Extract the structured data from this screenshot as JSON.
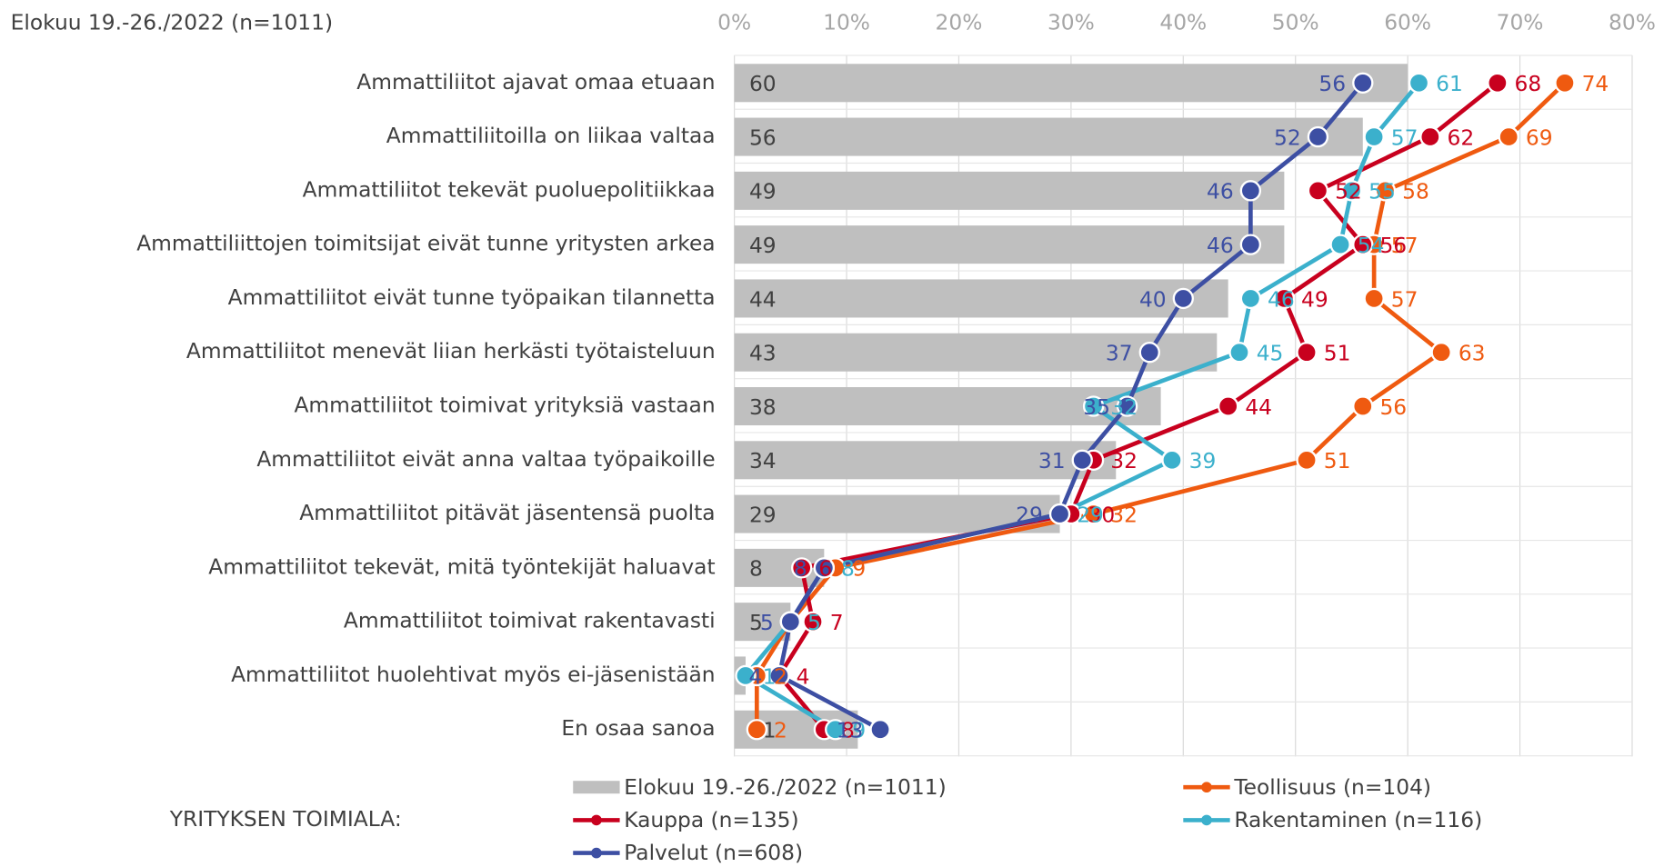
{
  "chart_data": {
    "type": "bar",
    "orientation": "horizontal",
    "title": "Elokuu 19.-26./2022 (n=1011)",
    "legend_title": "YRITYKSEN TOIMIALA:",
    "categories": [
      "Ammattiliitot ajavat omaa etuaan",
      "Ammattiliitoilla on liikaa valtaa",
      "Ammattiliitot tekevät puoluepolitiikkaa",
      "Ammattiliittojen toimitsijat eivät tunne yritysten arkea",
      "Ammattiliitot eivät tunne työpaikan tilannetta",
      "Ammattiliitot menevät liian herkästi työtaisteluun",
      "Ammattiliitot toimivat yrityksiä vastaan",
      "Ammattiliitot eivät anna valtaa työpaikoille",
      "Ammattiliitot pitävät jäsentensä puolta",
      "Ammattiliitot tekevät, mitä työntekijät haluavat",
      "Ammattiliitot toimivat rakentavasti",
      "Ammattiliitot huolehtivat myös ei-jäsenistään",
      "En osaa sanoa"
    ],
    "series": [
      {
        "name": "Elokuu 19.-26./2022 (n=1011)",
        "type": "bar",
        "color": "#bfbfbf",
        "values": [
          60,
          56,
          49,
          49,
          44,
          43,
          38,
          34,
          29,
          8,
          5,
          1,
          11
        ]
      },
      {
        "name": "Teollisuus (n=104)",
        "type": "line",
        "color": "#ef5a10",
        "values": [
          74,
          69,
          58,
          57,
          57,
          63,
          56,
          51,
          32,
          9,
          5,
          2,
          2
        ]
      },
      {
        "name": "Kauppa (n=135)",
        "type": "line",
        "color": "#c8001e",
        "values": [
          68,
          62,
          52,
          56,
          49,
          51,
          44,
          32,
          30,
          6,
          7,
          4,
          8
        ]
      },
      {
        "name": "Rakentaminen (n=116)",
        "type": "line",
        "color": "#3bb0cc",
        "values": [
          61,
          57,
          55,
          54,
          46,
          45,
          32,
          39,
          29,
          8,
          5,
          1,
          9
        ]
      },
      {
        "name": "Palvelut (n=608)",
        "type": "line",
        "color": "#3d4fa3",
        "values": [
          56,
          52,
          46,
          46,
          40,
          37,
          35,
          31,
          29,
          8,
          5,
          4,
          13
        ]
      }
    ],
    "xlim": [
      0,
      80
    ],
    "xticks": [
      {
        "value": 0,
        "label": "0%"
      },
      {
        "value": 10,
        "label": "10%"
      },
      {
        "value": 20,
        "label": "20%"
      },
      {
        "value": 30,
        "label": "30%"
      },
      {
        "value": 40,
        "label": "40%"
      },
      {
        "value": 50,
        "label": "50%"
      },
      {
        "value": 60,
        "label": "60%"
      },
      {
        "value": 70,
        "label": "70%"
      },
      {
        "value": 80,
        "label": "80%"
      }
    ],
    "grid": true
  }
}
